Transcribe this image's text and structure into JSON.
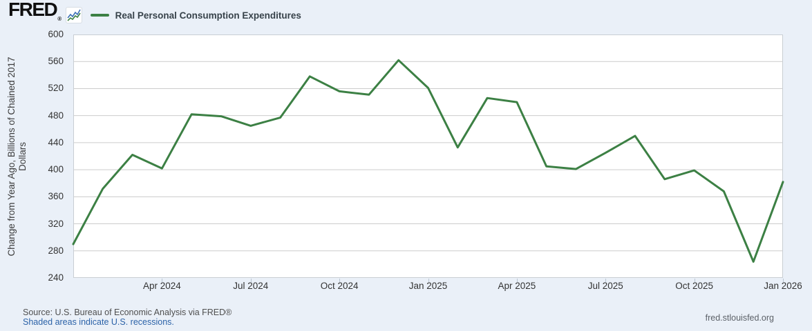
{
  "header": {
    "logo_text": "FRED",
    "logo_registered": "®",
    "legend": {
      "series_label": "Real Personal Consumption Expenditures"
    }
  },
  "chart_data": {
    "type": "line",
    "title": "Real Personal Consumption Expenditures",
    "x": [
      "Jan 2024",
      "Feb 2024",
      "Mar 2024",
      "Apr 2024",
      "May 2024",
      "Jun 2024",
      "Jul 2024",
      "Aug 2024",
      "Sep 2024",
      "Oct 2024",
      "Nov 2024",
      "Dec 2024",
      "Jan 2025",
      "Feb 2025",
      "Mar 2025",
      "Apr 2025",
      "May 2025",
      "Jun 2025",
      "Jul 2025",
      "Aug 2025",
      "Sep 2025",
      "Oct 2025",
      "Nov 2025",
      "Dec 2025",
      "Jan 2026"
    ],
    "values": [
      290,
      372,
      422,
      402,
      482,
      479,
      465,
      477,
      538,
      516,
      511,
      562,
      521,
      433,
      506,
      500,
      405,
      401,
      425,
      450,
      386,
      399,
      368,
      264,
      382
    ],
    "ylabel": "Change from Year Ago, Billions of Chained 2017 Dollars",
    "ylabel_lines": [
      "Change from Year Ago, Billions of Chained 2017",
      "Dollars"
    ],
    "ylim": [
      240,
      600
    ],
    "yticks": [
      600,
      560,
      520,
      480,
      440,
      400,
      360,
      320,
      280,
      240
    ],
    "xtick_labels": [
      "Apr 2024",
      "Jul 2024",
      "Oct 2024",
      "Jan 2025",
      "Apr 2025",
      "Jul 2025",
      "Oct 2025",
      "Jan 2026"
    ],
    "xtick_indices": [
      3,
      6,
      9,
      12,
      15,
      18,
      21,
      24
    ],
    "grid": "horizontal",
    "legend_position": "top-left",
    "line_color": "#3c8044"
  },
  "footer": {
    "source": "Source: U.S. Bureau of Economic Analysis via FRED®",
    "recessions_note": "Shaded areas indicate U.S. recessions.",
    "site": "fred.stlouisfed.org"
  },
  "colors": {
    "page_background": "#eaf0f8",
    "plot_background": "#ffffff",
    "gridline": "#cccccc",
    "plot_border": "#c9ced3",
    "series_green": "#3c8044",
    "icon_blue": "#3b6fb6",
    "link_blue": "#2b62a8"
  }
}
